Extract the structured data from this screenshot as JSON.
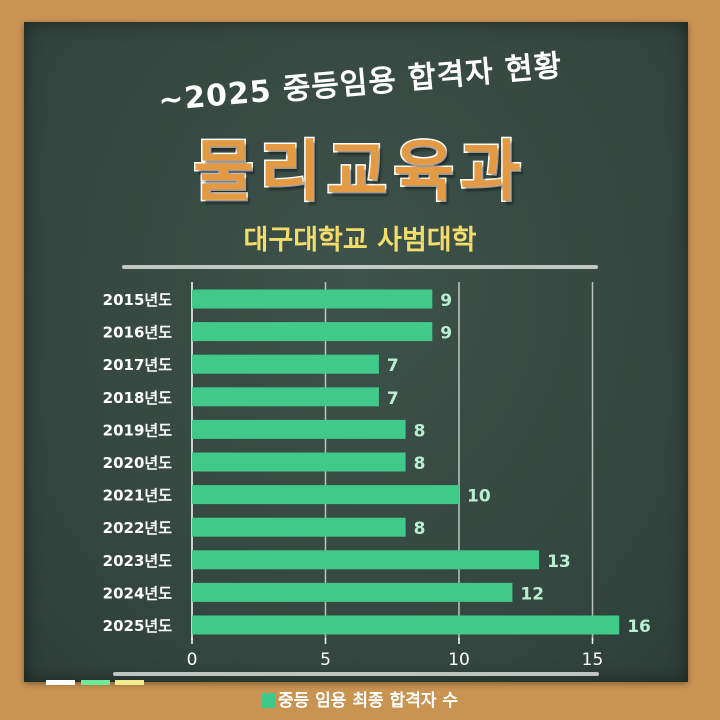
{
  "header": {
    "top_line": "~2025 중등임용 합격자 현황",
    "title": "물리교육과",
    "school": "대구대학교 사범대학"
  },
  "colors": {
    "bar": "#41c98a",
    "board": "#34483f",
    "frame": "#c99352",
    "title": "#e39a42",
    "school": "#f3dc6b"
  },
  "chart_data": {
    "type": "bar",
    "orientation": "horizontal",
    "categories": [
      "2015년도",
      "2016년도",
      "2017년도",
      "2018년도",
      "2019년도",
      "2020년도",
      "2021년도",
      "2022년도",
      "2023년도",
      "2024년도",
      "2025년도"
    ],
    "series": [
      {
        "name": "중등 임용 최종 합격자 수",
        "values": [
          9,
          9,
          7,
          7,
          8,
          8,
          10,
          8,
          13,
          12,
          16
        ]
      }
    ],
    "xticks": [
      0,
      5,
      10,
      15
    ],
    "xlim": [
      0,
      16
    ],
    "grid": true,
    "legend": "bottom"
  },
  "legend": {
    "label": "중등 임용 최종 합격자 수"
  }
}
